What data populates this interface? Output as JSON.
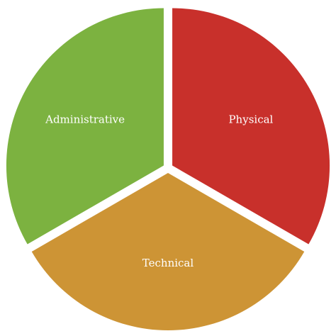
{
  "chart_data": {
    "type": "pie",
    "categories": [
      "Physical",
      "Technical",
      "Administrative"
    ],
    "values": [
      33.33,
      33.33,
      33.33
    ],
    "colors": [
      "#c8302b",
      "#cd9435",
      "#7cb240"
    ],
    "title": "",
    "legend": "none"
  }
}
